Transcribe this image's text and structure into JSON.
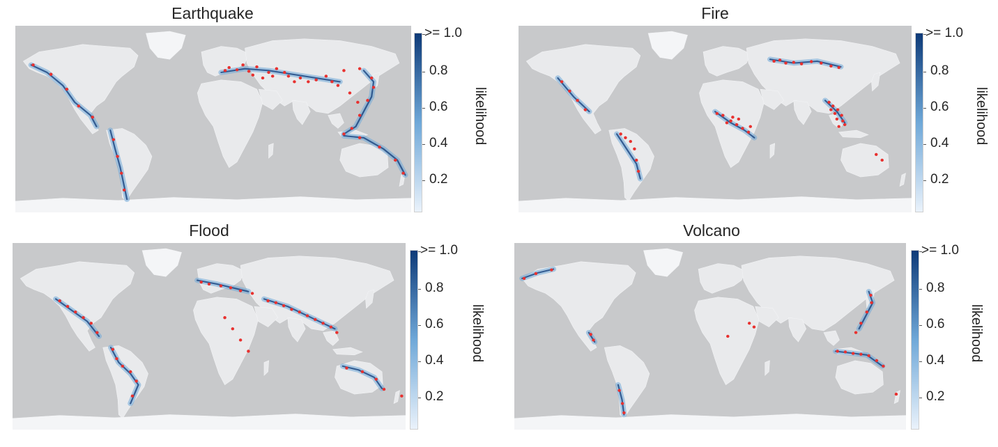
{
  "colors": {
    "ocean": "#c8c9cb",
    "land": "#e9eaec",
    "land_highlight": "#f3f4f6",
    "ice": "#f4f5f7",
    "likelihood_low": "#eaf2fb",
    "likelihood_mid": "#6fa8d8",
    "likelihood_high": "#0d3a78",
    "event_point": "#e8312f"
  },
  "colorbar": {
    "label": "likelihood",
    "ticks": [
      ">= 1.0",
      "0.8",
      "0.6",
      "0.4",
      "0.2"
    ]
  },
  "panels": [
    {
      "title": "Earthquake"
    },
    {
      "title": "Fire"
    },
    {
      "title": "Flood"
    },
    {
      "title": "Volcano"
    }
  ]
}
